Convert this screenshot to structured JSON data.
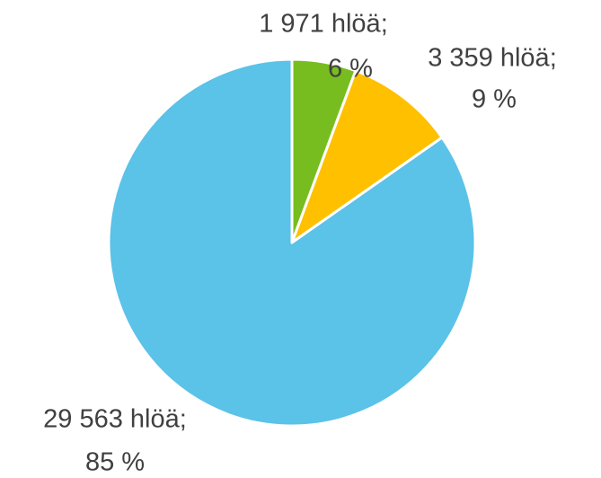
{
  "chart_data": {
    "type": "pie",
    "categories": [
      null,
      null,
      null
    ],
    "values": [
      1971,
      3359,
      29563
    ],
    "value_labels": [
      "1 971 hlöä;",
      "3 359 hlöä;",
      "29 563 hlöä;"
    ],
    "percent_labels": [
      "6 %",
      "9 %",
      "85 %"
    ],
    "colors": [
      "#78bd1f",
      "#ffc000",
      "#5bc2e8"
    ]
  }
}
